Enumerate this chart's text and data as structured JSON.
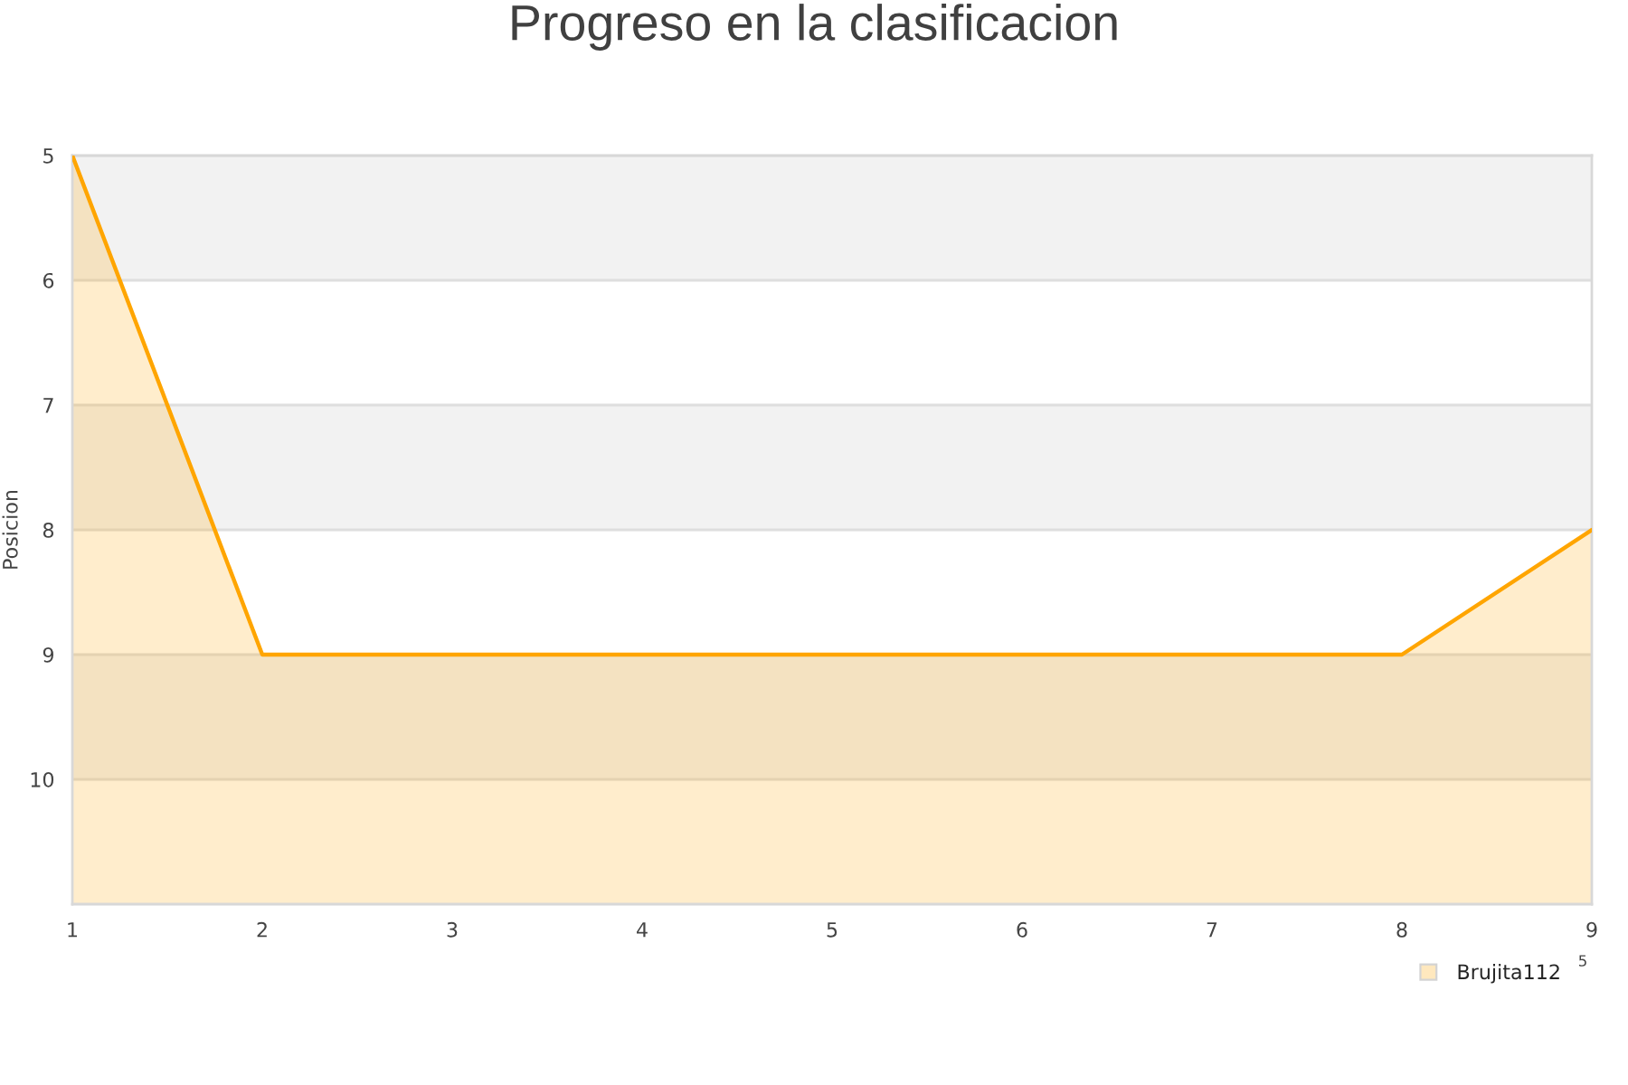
{
  "chart_data": {
    "type": "line",
    "title": "Progreso en la clasificacion",
    "ylabel": "Posicion",
    "x": [
      1,
      2,
      3,
      4,
      5,
      6,
      7,
      8,
      9
    ],
    "series": [
      {
        "name": "Brujita112",
        "color": "#ffa500",
        "values": [
          5,
          9,
          9,
          9,
          9,
          9,
          9,
          9,
          8
        ],
        "lower": [
          11,
          11,
          11,
          11,
          11,
          11,
          11,
          11,
          11
        ],
        "upper": [
          5,
          9,
          9,
          9,
          9,
          9,
          9,
          9,
          8
        ]
      }
    ],
    "xlim": [
      1,
      9
    ],
    "xticks": [
      1,
      2,
      3,
      4,
      5,
      6,
      7,
      8,
      9
    ],
    "ylim": [
      11,
      5
    ],
    "yticks": [
      5,
      6,
      7,
      8,
      9,
      10
    ],
    "bands": [
      {
        "axis": "y",
        "from": 5,
        "to": 6,
        "color": "#f2f2f2"
      },
      {
        "axis": "y",
        "from": 7,
        "to": 8,
        "color": "#f2f2f2"
      },
      {
        "axis": "y",
        "from": 9,
        "to": 10,
        "color": "#f2f2f2"
      }
    ],
    "grid": "y",
    "legend": "bottom right",
    "marker": "none",
    "line_style": "solid",
    "annotations": [
      "5"
    ]
  }
}
